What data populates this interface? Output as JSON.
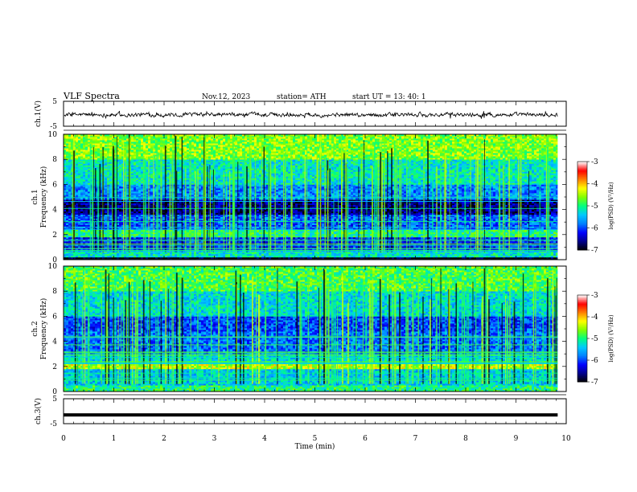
{
  "header": {
    "title": "VLF  Spectra",
    "date": "Nov.12, 2023",
    "station": "station= ATH",
    "start": "start  UT  =    13: 40: 1"
  },
  "chart_data": [
    {
      "type": "line",
      "panel": "ch1-waveform",
      "ylabel": "ch.1(V)",
      "ylim": [
        -5,
        5
      ],
      "yticks": [
        "5",
        "-5"
      ],
      "xlim": [
        0,
        9.83
      ],
      "description_series": "broadband voltage trace fluctuating around 0 V with amplitude ~ +/-1 V",
      "amplitude_v": 1.0
    },
    {
      "type": "heatmap",
      "panel": "ch1-spectrogram",
      "ylabel": "ch.1\nFrequency (kHz)",
      "ylabel_lines": [
        "ch.1",
        "Frequency (kHz)"
      ],
      "ylim": [
        0,
        10
      ],
      "yticks": [
        "0",
        "2",
        "4",
        "6",
        "8",
        "10"
      ],
      "xlim": [
        0,
        9.83
      ],
      "colorbar": {
        "label": "log(PSD) (V²/Hz)",
        "range": [
          -7,
          -3
        ],
        "ticks": [
          "-3",
          "-4",
          "-5",
          "-6",
          "-7"
        ]
      },
      "bands_log_psd": [
        {
          "f_low": 0,
          "f_high": 0.2,
          "level": -7.0
        },
        {
          "f_low": 0.2,
          "f_high": 0.7,
          "level": -5.2
        },
        {
          "f_low": 0.7,
          "f_high": 1.8,
          "level": -6.1
        },
        {
          "f_low": 1.8,
          "f_high": 2.4,
          "level": -5.0
        },
        {
          "f_low": 2.4,
          "f_high": 3.6,
          "level": -5.9
        },
        {
          "f_low": 3.6,
          "f_high": 4.8,
          "level": -6.6
        },
        {
          "f_low": 4.8,
          "f_high": 6.0,
          "level": -5.7
        },
        {
          "f_low": 6.0,
          "f_high": 8.0,
          "level": -5.2
        },
        {
          "f_low": 8.0,
          "f_high": 10.0,
          "level": -4.6
        }
      ]
    },
    {
      "type": "heatmap",
      "panel": "ch2-spectrogram",
      "ylabel": "ch.2\nFrequency (kHz)",
      "ylabel_lines": [
        "ch.2",
        "Frequency (kHz)"
      ],
      "ylim": [
        0,
        10
      ],
      "yticks": [
        "0",
        "2",
        "4",
        "6",
        "8",
        "10"
      ],
      "xlim": [
        0,
        9.83
      ],
      "colorbar": {
        "label": "log(PSD) (V²/Hz)",
        "range": [
          -7,
          -3
        ],
        "ticks": [
          "-3",
          "-4",
          "-5",
          "-6",
          "-7"
        ]
      },
      "bands_log_psd": [
        {
          "f_low": 0,
          "f_high": 0.5,
          "level": -5.0
        },
        {
          "f_low": 0.5,
          "f_high": 1.8,
          "level": -5.4
        },
        {
          "f_low": 1.8,
          "f_high": 2.2,
          "level": -4.4
        },
        {
          "f_low": 2.2,
          "f_high": 3.0,
          "level": -5.3
        },
        {
          "f_low": 3.0,
          "f_high": 4.8,
          "level": -5.8
        },
        {
          "f_low": 4.8,
          "f_high": 6.0,
          "level": -6.0
        },
        {
          "f_low": 6.0,
          "f_high": 8.0,
          "level": -5.3
        },
        {
          "f_low": 8.0,
          "f_high": 10.0,
          "level": -4.8
        }
      ]
    },
    {
      "type": "line",
      "panel": "ch3-waveform",
      "ylabel": "ch.3(V)",
      "ylim": [
        -5,
        5
      ],
      "yticks": [
        "5",
        "-5"
      ],
      "xlim": [
        0,
        9.83
      ],
      "constant_value_v": -1.5,
      "xlabel": "Time  (min)",
      "xticks": [
        "0",
        "1",
        "2",
        "3",
        "4",
        "5",
        "6",
        "7",
        "8",
        "9",
        "10"
      ]
    }
  ],
  "colors": {
    "colormap": [
      "#000000",
      "#00008b",
      "#0000ff",
      "#0080ff",
      "#00c8ff",
      "#00ff80",
      "#80ff00",
      "#ffff00",
      "#ff8000",
      "#ff0000",
      "#ffffff"
    ],
    "axis": "#000000",
    "trace": "#000000"
  }
}
